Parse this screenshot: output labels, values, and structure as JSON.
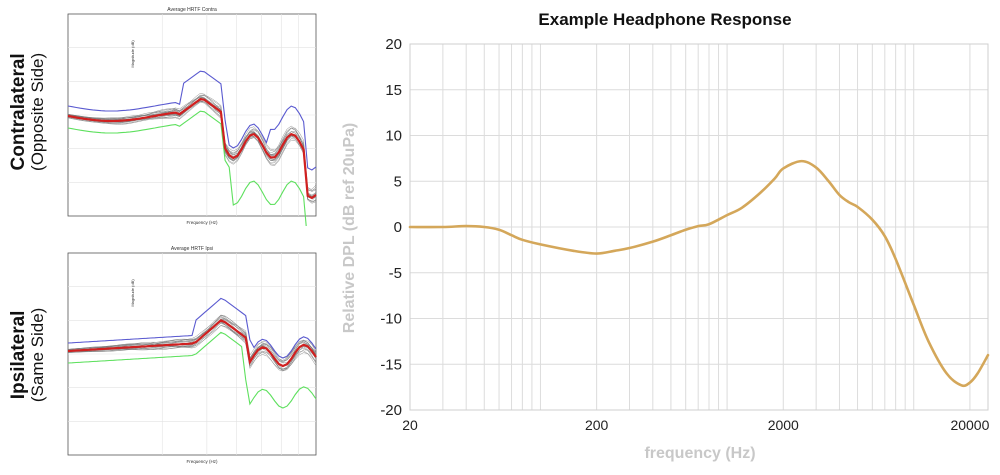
{
  "left_panels": [
    {
      "label_bold": "Contralateral",
      "label_sub": "(Opposite Side)",
      "plot_title": "Average HRTF Contra",
      "xlabel": "Frequency (Hz)",
      "ylabel": "Magnitude (dB)"
    },
    {
      "label_bold": "Ipsilateral",
      "label_sub": "(Same Side)",
      "plot_title": "Average HRTF Ipsi",
      "xlabel": "Frequency (Hz)",
      "ylabel": "Magnitude (dB)"
    }
  ],
  "chart_data": [
    {
      "type": "line",
      "title": "Example Headphone Response",
      "xlabel": "frequency (Hz)",
      "ylabel": "Relative DPL (dB ref 20uPa)",
      "x_scale": "log",
      "xlim": [
        20,
        25000
      ],
      "ylim": [
        -20,
        20
      ],
      "x_ticks": [
        20,
        200,
        2000,
        20000
      ],
      "x_tick_labels": [
        "20",
        "200",
        "2000",
        "20000"
      ],
      "y_ticks": [
        20,
        15,
        10,
        5,
        0,
        -5,
        -10,
        -15,
        -20
      ],
      "y_tick_labels": [
        "20",
        "15",
        "10",
        "5",
        "0",
        "-5",
        "-10",
        "-15",
        "-20"
      ],
      "grid": true,
      "color": "#d4a75a",
      "series": [
        {
          "x": [
            20,
            30,
            40,
            50,
            60,
            70,
            80,
            100,
            150,
            200,
            250,
            300,
            400,
            500,
            600,
            700,
            800,
            1000,
            1200,
            1500,
            1800,
            2000,
            2500,
            3000,
            3500,
            4000,
            4500,
            5000,
            6000,
            7000,
            8000,
            10000,
            12000,
            15000,
            18000,
            20000,
            22000,
            25000
          ],
          "y": [
            0,
            0,
            0.1,
            0,
            -0.3,
            -0.9,
            -1.4,
            -1.9,
            -2.6,
            -2.9,
            -2.6,
            -2.3,
            -1.6,
            -0.9,
            -0.3,
            0.1,
            0.3,
            1.3,
            2.1,
            3.7,
            5.3,
            6.4,
            7.2,
            6.5,
            5.0,
            3.5,
            2.7,
            2.2,
            0.8,
            -1.0,
            -3.5,
            -8.5,
            -12.5,
            -16.0,
            -17.3,
            -17.0,
            -16.0,
            -14.0
          ]
        }
      ]
    }
  ]
}
